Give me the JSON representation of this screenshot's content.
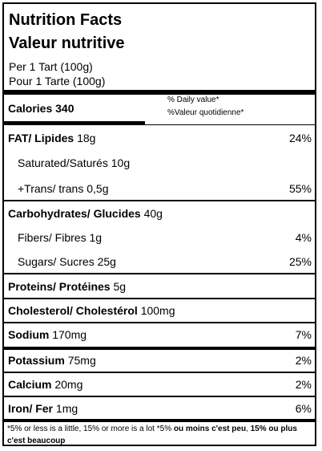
{
  "header": {
    "title_en": "Nutrition Facts",
    "title_fr": "Valeur nutritive",
    "serving_en": "Per 1 Tart  (100g)",
    "serving_fr": "Pour 1 Tarte (100g)"
  },
  "calories": {
    "label": "Calories 340",
    "dv_en": "% Daily value*",
    "dv_fr": "%Valeur quotidienne*"
  },
  "nutrients": {
    "fat": {
      "label": "FAT/ Lipides",
      "amount": "18g",
      "dv": "24%"
    },
    "saturated": {
      "label": "Saturated/Saturés",
      "amount": "10g"
    },
    "trans": {
      "label": "+Trans/ trans 0,5g",
      "dv": "55%"
    },
    "carbs": {
      "label": "Carbohydrates/ Glucides",
      "amount": "40g"
    },
    "fibers": {
      "label": "Fibers/ Fibres 1g",
      "dv": "4%"
    },
    "sugars": {
      "label": "Sugars/ Sucres",
      "amount": "25g",
      "dv": "25%"
    },
    "proteins": {
      "label": "Proteins/ Protéines",
      "amount": "5g"
    },
    "cholesterol": {
      "label": "Cholesterol/ Cholestérol",
      "amount": "100mg"
    },
    "sodium": {
      "label": "Sodium",
      "amount": "170mg",
      "dv": "7%"
    },
    "potassium": {
      "label": "Potassium",
      "amount": "75mg",
      "dv": "2%"
    },
    "calcium": {
      "label": "Calcium",
      "amount": "20mg",
      "dv": "2%"
    },
    "iron": {
      "label": "Iron/ Fer",
      "amount": "1mg",
      "dv": "6%"
    }
  },
  "footer": {
    "part1": "*5% or less is a little, 15% or more is a lot *5% ",
    "part2": "ou moins c'est peu",
    "part3": ", ",
    "part4": "15% ou plus c'est beaucoup"
  }
}
